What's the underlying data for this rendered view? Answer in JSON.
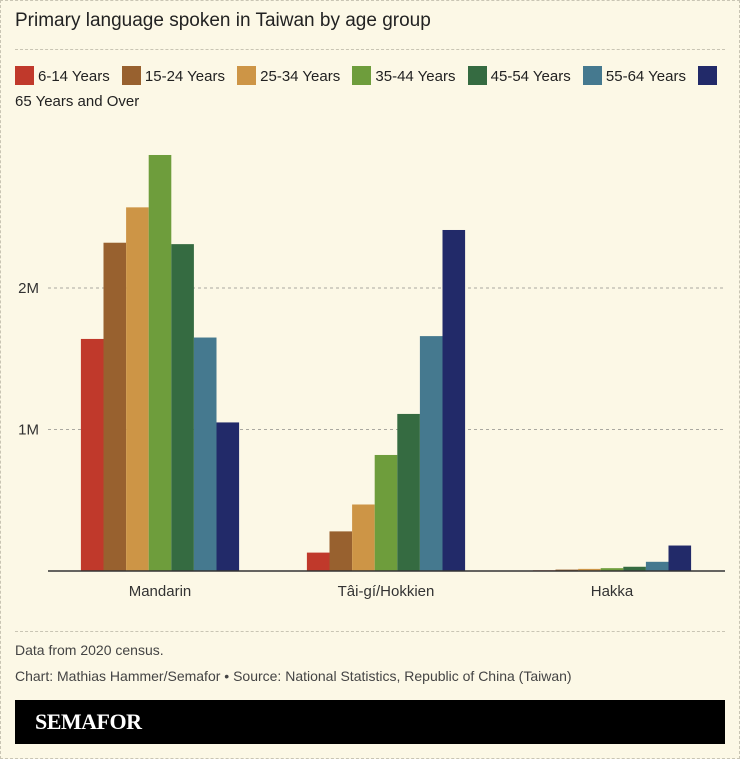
{
  "chart_data": {
    "type": "bar",
    "title": "Primary language spoken in Taiwan by age group",
    "categories": [
      "Mandarin",
      "Tâi-gí/Hokkien",
      "Hakka"
    ],
    "xlabel": "",
    "ylabel": "",
    "ylim": [
      0,
      3000000
    ],
    "yticks": [
      {
        "value": 1000000,
        "label": "1M"
      },
      {
        "value": 2000000,
        "label": "2M"
      }
    ],
    "grid": true,
    "legend_position": "top",
    "series": [
      {
        "name": "6-14 Years",
        "color": "#c0392b",
        "values": [
          1640000,
          130000,
          5000
        ]
      },
      {
        "name": "15-24 Years",
        "color": "#98612f",
        "values": [
          2320000,
          280000,
          10000
        ]
      },
      {
        "name": "25-34 Years",
        "color": "#cd9546",
        "values": [
          2570000,
          470000,
          15000
        ]
      },
      {
        "name": "35-44 Years",
        "color": "#6e9d3c",
        "values": [
          2940000,
          820000,
          20000
        ]
      },
      {
        "name": "45-54 Years",
        "color": "#356b41",
        "values": [
          2310000,
          1110000,
          30000
        ]
      },
      {
        "name": "55-64 Years",
        "color": "#45798f",
        "values": [
          1650000,
          1660000,
          65000
        ]
      },
      {
        "name": "65 Years and Over",
        "color": "#222a69",
        "values": [
          1050000,
          2410000,
          180000
        ]
      }
    ]
  },
  "notes": {
    "data_note": "Data from 2020 census.",
    "credit": "Chart: Mathias Hammer/Semafor • Source: National Statistics, Republic of China (Taiwan)"
  },
  "brand": {
    "name": "SEMAFOR"
  }
}
